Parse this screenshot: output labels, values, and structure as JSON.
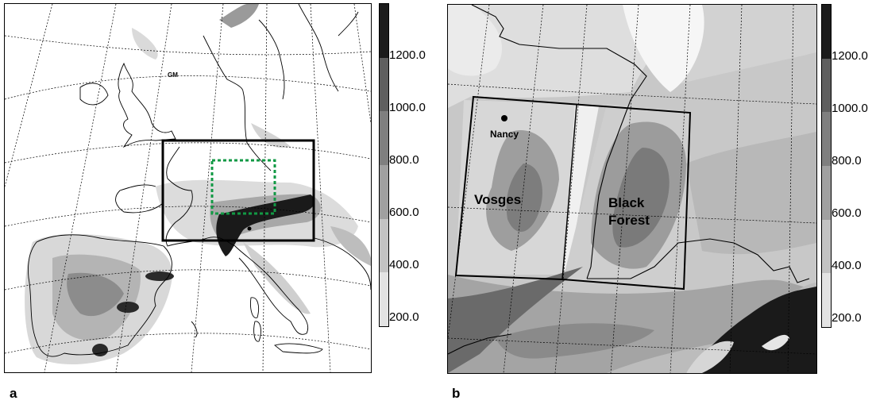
{
  "panels": {
    "a": {
      "letter": "a",
      "marker_label": "GM"
    },
    "b": {
      "letter": "b",
      "places": {
        "nancy": "Nancy",
        "vosges": "Vosges",
        "black_forest_1": "Black",
        "black_forest_2": "Forest"
      }
    }
  },
  "colorbar": {
    "ticks": [
      "1200.0",
      "1000.0",
      "800.0",
      "600.0",
      "400.0",
      "200.0"
    ],
    "colors": [
      "#1c1c1c",
      "#5f5f5f",
      "#7f7f7f",
      "#a0a0a0",
      "#c3c3c3",
      "#e3e3e3"
    ]
  },
  "colors": {
    "outline": "#000000",
    "inner_domain": "#119944"
  }
}
